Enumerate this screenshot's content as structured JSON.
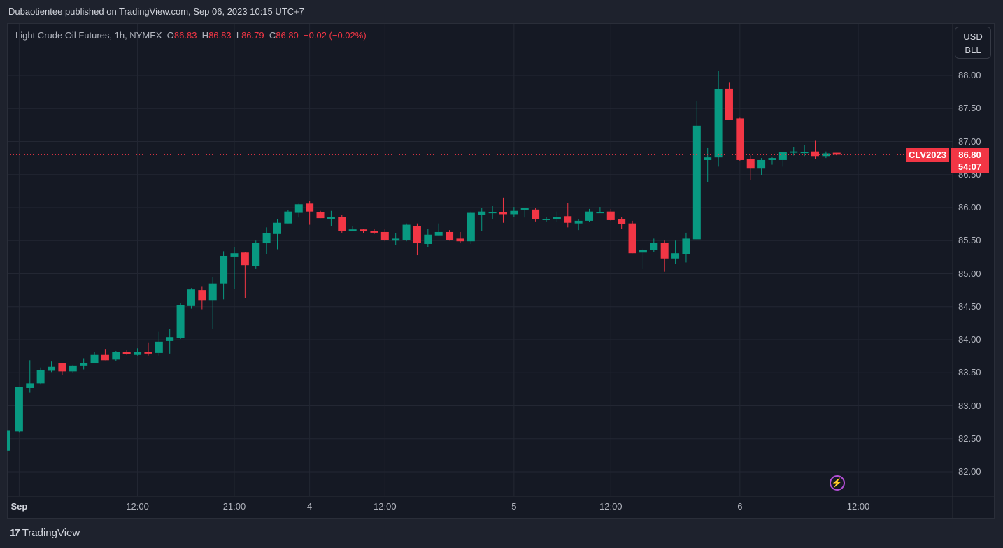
{
  "header": {
    "published": "Dubaotientee published on TradingView.com, Sep 06, 2023 10:15 UTC+7"
  },
  "legend": {
    "symbol": "Light Crude Oil Futures, 1h, NYMEX",
    "o_label": "O",
    "o": "86.83",
    "h_label": "H",
    "h": "86.83",
    "l_label": "L",
    "l": "86.79",
    "c_label": "C",
    "c": "86.80",
    "change": "−0.02 (−0.02%)"
  },
  "price_axis": {
    "unit_line1": "USD",
    "unit_line2": "BLL",
    "symbol_tag": "CLV2023",
    "last_price": "86.80",
    "countdown": "54:07"
  },
  "footer": {
    "brand": "TradingView"
  },
  "colors": {
    "up": "#089981",
    "down": "#f23645",
    "background": "#151924",
    "grid": "#232733",
    "alert_icon": "#b44fd6"
  },
  "icons": {
    "alert": "lightning-bolt-icon",
    "brand": "tradingview-logo-icon"
  },
  "chart_data": {
    "type": "candlestick",
    "interval": "1h",
    "ylim": [
      81.8,
      88.3
    ],
    "grid": true,
    "y_ticks": [
      "82.00",
      "82.50",
      "83.00",
      "83.50",
      "84.00",
      "84.50",
      "85.00",
      "85.50",
      "86.00",
      "86.50",
      "87.00",
      "87.50",
      "88.00"
    ],
    "x_ticks": [
      {
        "label": "Sep",
        "bar": 1
      },
      {
        "label": "12:00",
        "bar": 12
      },
      {
        "label": "21:00",
        "bar": 21
      },
      {
        "label": "4",
        "bar": 28
      },
      {
        "label": "12:00",
        "bar": 35
      },
      {
        "label": "5",
        "bar": 47
      },
      {
        "label": "12:00",
        "bar": 56
      },
      {
        "label": "6",
        "bar": 68
      },
      {
        "label": "12:00",
        "bar": 79
      }
    ],
    "last_price": 86.8,
    "ohlc": [
      [
        82.32,
        82.63,
        82.32,
        82.63
      ],
      [
        82.61,
        83.29,
        82.6,
        83.29
      ],
      [
        83.27,
        83.69,
        83.2,
        83.34
      ],
      [
        83.34,
        83.58,
        83.32,
        83.54
      ],
      [
        83.53,
        83.67,
        83.51,
        83.59
      ],
      [
        83.64,
        83.64,
        83.47,
        83.52
      ],
      [
        83.52,
        83.62,
        83.5,
        83.61
      ],
      [
        83.61,
        83.72,
        83.55,
        83.65
      ],
      [
        83.64,
        83.82,
        83.64,
        83.77
      ],
      [
        83.77,
        83.85,
        83.69,
        83.69
      ],
      [
        83.7,
        83.83,
        83.68,
        83.82
      ],
      [
        83.82,
        83.84,
        83.77,
        83.78
      ],
      [
        83.77,
        83.87,
        83.76,
        83.81
      ],
      [
        83.81,
        83.96,
        83.76,
        83.79
      ],
      [
        83.8,
        84.12,
        83.76,
        83.97
      ],
      [
        83.98,
        84.16,
        83.79,
        84.04
      ],
      [
        84.03,
        84.55,
        84.01,
        84.52
      ],
      [
        84.51,
        84.78,
        84.47,
        84.76
      ],
      [
        84.75,
        84.81,
        84.46,
        84.6
      ],
      [
        84.6,
        84.95,
        84.17,
        84.85
      ],
      [
        84.85,
        85.34,
        84.61,
        85.27
      ],
      [
        85.26,
        85.4,
        84.77,
        85.31
      ],
      [
        85.32,
        85.33,
        84.63,
        85.13
      ],
      [
        85.12,
        85.5,
        85.07,
        85.47
      ],
      [
        85.46,
        85.7,
        85.3,
        85.61
      ],
      [
        85.6,
        85.82,
        85.37,
        85.77
      ],
      [
        85.76,
        85.96,
        85.76,
        85.94
      ],
      [
        85.92,
        86.06,
        85.85,
        86.05
      ],
      [
        86.06,
        86.1,
        85.74,
        85.94
      ],
      [
        85.93,
        85.95,
        85.84,
        85.84
      ],
      [
        85.83,
        85.95,
        85.72,
        85.86
      ],
      [
        85.86,
        85.89,
        85.62,
        85.65
      ],
      [
        85.64,
        85.72,
        85.64,
        85.67
      ],
      [
        85.67,
        85.68,
        85.61,
        85.64
      ],
      [
        85.65,
        85.68,
        85.6,
        85.62
      ],
      [
        85.63,
        85.68,
        85.49,
        85.51
      ],
      [
        85.5,
        85.61,
        85.43,
        85.53
      ],
      [
        85.51,
        85.76,
        85.49,
        85.74
      ],
      [
        85.72,
        85.76,
        85.28,
        85.46
      ],
      [
        85.45,
        85.68,
        85.4,
        85.59
      ],
      [
        85.58,
        85.76,
        85.58,
        85.63
      ],
      [
        85.63,
        85.66,
        85.5,
        85.51
      ],
      [
        85.53,
        85.63,
        85.46,
        85.49
      ],
      [
        85.49,
        85.94,
        85.45,
        85.92
      ],
      [
        85.89,
        85.99,
        85.65,
        85.94
      ],
      [
        85.92,
        86.03,
        85.83,
        85.93
      ],
      [
        85.93,
        86.15,
        85.77,
        85.9
      ],
      [
        85.9,
        86.01,
        85.86,
        85.95
      ],
      [
        85.96,
        85.99,
        85.85,
        85.99
      ],
      [
        85.97,
        85.99,
        85.79,
        85.82
      ],
      [
        85.81,
        85.86,
        85.79,
        85.83
      ],
      [
        85.82,
        85.94,
        85.78,
        85.86
      ],
      [
        85.87,
        86.07,
        85.7,
        85.77
      ],
      [
        85.76,
        85.83,
        85.66,
        85.8
      ],
      [
        85.8,
        85.98,
        85.78,
        85.94
      ],
      [
        85.93,
        86.01,
        85.92,
        85.93
      ],
      [
        85.94,
        85.98,
        85.8,
        85.81
      ],
      [
        85.82,
        85.86,
        85.68,
        85.75
      ],
      [
        85.76,
        85.8,
        85.31,
        85.31
      ],
      [
        85.32,
        85.38,
        85.07,
        85.36
      ],
      [
        85.36,
        85.53,
        85.33,
        85.47
      ],
      [
        85.47,
        85.5,
        85.03,
        85.23
      ],
      [
        85.23,
        85.5,
        85.15,
        85.31
      ],
      [
        85.3,
        85.62,
        85.17,
        85.53
      ],
      [
        85.52,
        87.61,
        85.52,
        87.24
      ],
      [
        86.72,
        86.9,
        86.39,
        86.76
      ],
      [
        86.76,
        88.07,
        86.62,
        87.79
      ],
      [
        87.8,
        87.89,
        87.33,
        87.33
      ],
      [
        87.35,
        87.36,
        86.71,
        86.72
      ],
      [
        86.74,
        86.79,
        86.42,
        86.59
      ],
      [
        86.59,
        86.75,
        86.49,
        86.72
      ],
      [
        86.72,
        86.76,
        86.65,
        86.75
      ],
      [
        86.72,
        86.84,
        86.62,
        86.84
      ],
      [
        86.83,
        86.92,
        86.79,
        86.85
      ],
      [
        86.83,
        86.95,
        86.78,
        86.84
      ],
      [
        86.85,
        87.01,
        86.74,
        86.78
      ],
      [
        86.78,
        86.85,
        86.75,
        86.82
      ],
      [
        86.83,
        86.83,
        86.79,
        86.8
      ]
    ]
  }
}
